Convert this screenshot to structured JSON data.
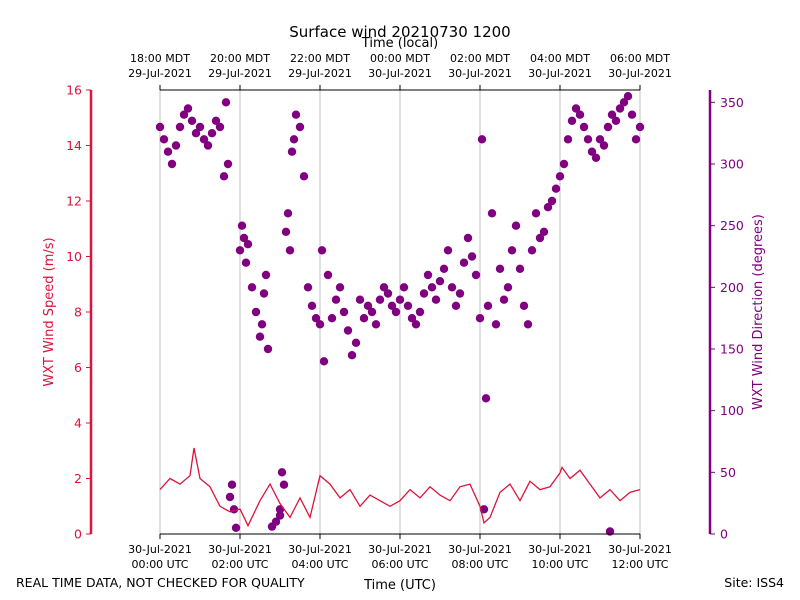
{
  "chart_data": {
    "type": "line+scatter",
    "title": "Surface wind 20210730 1200",
    "top_axis_label": "Time (local)",
    "xlabel": "Time (UTC)",
    "ylabel_left": "WXT Wind Speed (m/s)",
    "ylabel_right": "WXT Wind Direction (degrees)",
    "x_range_hours_utc": [
      0,
      12
    ],
    "ylim_left": [
      0,
      16
    ],
    "ylim_right": [
      0,
      360
    ],
    "left_ticks": [
      0,
      2,
      4,
      6,
      8,
      10,
      12,
      14,
      16
    ],
    "right_ticks": [
      0,
      50,
      100,
      150,
      200,
      250,
      300,
      350
    ],
    "bottom_ticks": [
      {
        "hour": 0,
        "line1": "30-Jul-2021",
        "line2": "00:00 UTC"
      },
      {
        "hour": 2,
        "line1": "30-Jul-2021",
        "line2": "02:00 UTC"
      },
      {
        "hour": 4,
        "line1": "30-Jul-2021",
        "line2": "04:00 UTC"
      },
      {
        "hour": 6,
        "line1": "30-Jul-2021",
        "line2": "06:00 UTC"
      },
      {
        "hour": 8,
        "line1": "30-Jul-2021",
        "line2": "08:00 UTC"
      },
      {
        "hour": 10,
        "line1": "30-Jul-2021",
        "line2": "10:00 UTC"
      },
      {
        "hour": 12,
        "line1": "30-Jul-2021",
        "line2": "12:00 UTC"
      }
    ],
    "top_ticks": [
      {
        "hour": 0,
        "line1": "18:00 MDT",
        "line2": "29-Jul-2021"
      },
      {
        "hour": 2,
        "line1": "20:00 MDT",
        "line2": "29-Jul-2021"
      },
      {
        "hour": 4,
        "line1": "22:00 MDT",
        "line2": "29-Jul-2021"
      },
      {
        "hour": 6,
        "line1": "00:00 MDT",
        "line2": "30-Jul-2021"
      },
      {
        "hour": 8,
        "line1": "02:00 MDT",
        "line2": "30-Jul-2021"
      },
      {
        "hour": 10,
        "line1": "04:00 MDT",
        "line2": "30-Jul-2021"
      },
      {
        "hour": 12,
        "line1": "06:00 MDT",
        "line2": "30-Jul-2021"
      }
    ],
    "speed_series": {
      "name": "WXT Wind Speed (m/s)",
      "color": "#DC143C",
      "x_hours": [
        0.0,
        0.25,
        0.5,
        0.75,
        0.85,
        1.0,
        1.25,
        1.5,
        1.75,
        2.0,
        2.2,
        2.5,
        2.75,
        3.0,
        3.25,
        3.5,
        3.75,
        4.0,
        4.25,
        4.5,
        4.75,
        5.0,
        5.25,
        5.5,
        5.75,
        6.0,
        6.25,
        6.5,
        6.75,
        7.0,
        7.25,
        7.5,
        7.75,
        8.0,
        8.1,
        8.25,
        8.5,
        8.75,
        9.0,
        9.25,
        9.5,
        9.75,
        10.0,
        10.05,
        10.25,
        10.5,
        10.75,
        11.0,
        11.25,
        11.5,
        11.75,
        12.0
      ],
      "values": [
        1.6,
        2.0,
        1.8,
        2.1,
        3.1,
        2.0,
        1.7,
        1.0,
        0.8,
        0.9,
        0.3,
        1.2,
        1.8,
        1.1,
        0.6,
        1.3,
        0.6,
        2.1,
        1.8,
        1.3,
        1.6,
        1.0,
        1.4,
        1.2,
        1.0,
        1.2,
        1.6,
        1.3,
        1.7,
        1.4,
        1.2,
        1.7,
        1.8,
        1.0,
        0.4,
        0.6,
        1.5,
        1.8,
        1.2,
        1.9,
        1.6,
        1.7,
        2.2,
        2.4,
        2.0,
        2.3,
        1.8,
        1.3,
        1.6,
        1.2,
        1.5,
        1.6
      ]
    },
    "direction_series": {
      "name": "WXT Wind Direction (degrees)",
      "color": "#800080",
      "x_hours": [
        0.0,
        0.1,
        0.2,
        0.3,
        0.4,
        0.5,
        0.6,
        0.7,
        0.8,
        0.9,
        1.0,
        1.1,
        1.2,
        1.3,
        1.4,
        1.5,
        1.6,
        1.65,
        1.7,
        1.75,
        1.8,
        1.85,
        1.9,
        2.0,
        2.05,
        2.1,
        2.15,
        2.2,
        2.3,
        2.4,
        2.5,
        2.55,
        2.6,
        2.65,
        2.7,
        2.8,
        2.9,
        3.0,
        3.0,
        3.05,
        3.1,
        3.15,
        3.2,
        3.25,
        3.3,
        3.35,
        3.4,
        3.5,
        3.6,
        3.7,
        3.8,
        3.9,
        4.0,
        4.05,
        4.1,
        4.2,
        4.3,
        4.4,
        4.5,
        4.6,
        4.7,
        4.8,
        4.9,
        5.0,
        5.1,
        5.2,
        5.3,
        5.4,
        5.5,
        5.6,
        5.7,
        5.8,
        5.9,
        6.0,
        6.1,
        6.2,
        6.3,
        6.4,
        6.5,
        6.6,
        6.7,
        6.8,
        6.9,
        7.0,
        7.1,
        7.2,
        7.3,
        7.4,
        7.5,
        7.6,
        7.7,
        7.8,
        7.9,
        8.0,
        8.05,
        8.1,
        8.15,
        8.2,
        8.3,
        8.4,
        8.5,
        8.6,
        8.7,
        8.8,
        8.9,
        9.0,
        9.1,
        9.2,
        9.3,
        9.4,
        9.5,
        9.6,
        9.7,
        9.8,
        9.9,
        10.0,
        10.1,
        10.2,
        10.3,
        10.4,
        10.5,
        10.6,
        10.7,
        10.8,
        10.9,
        11.0,
        11.1,
        11.2,
        11.25,
        11.3,
        11.4,
        11.5,
        11.6,
        11.7,
        11.8,
        11.9,
        12.0
      ],
      "values": [
        330,
        320,
        310,
        300,
        315,
        330,
        340,
        345,
        335,
        325,
        330,
        320,
        315,
        325,
        335,
        330,
        290,
        350,
        300,
        30,
        40,
        20,
        5,
        230,
        250,
        240,
        220,
        235,
        200,
        180,
        160,
        170,
        195,
        210,
        150,
        6,
        10,
        20,
        15,
        50,
        40,
        245,
        260,
        230,
        310,
        320,
        340,
        330,
        290,
        200,
        185,
        175,
        170,
        230,
        140,
        210,
        175,
        190,
        200,
        180,
        165,
        145,
        155,
        190,
        175,
        185,
        180,
        170,
        190,
        200,
        195,
        185,
        180,
        190,
        200,
        185,
        175,
        170,
        180,
        195,
        210,
        200,
        190,
        205,
        215,
        230,
        200,
        185,
        195,
        220,
        240,
        225,
        210,
        175,
        320,
        20,
        110,
        185,
        260,
        170,
        215,
        190,
        200,
        230,
        250,
        215,
        185,
        170,
        230,
        260,
        240,
        245,
        265,
        270,
        280,
        290,
        300,
        320,
        335,
        345,
        340,
        330,
        320,
        310,
        305,
        320,
        315,
        330,
        2,
        340,
        335,
        345,
        350,
        355,
        340,
        320,
        330
      ]
    }
  },
  "footer": {
    "left_note": "REAL TIME DATA, NOT CHECKED FOR QUALITY",
    "site": "Site: ISS4"
  }
}
